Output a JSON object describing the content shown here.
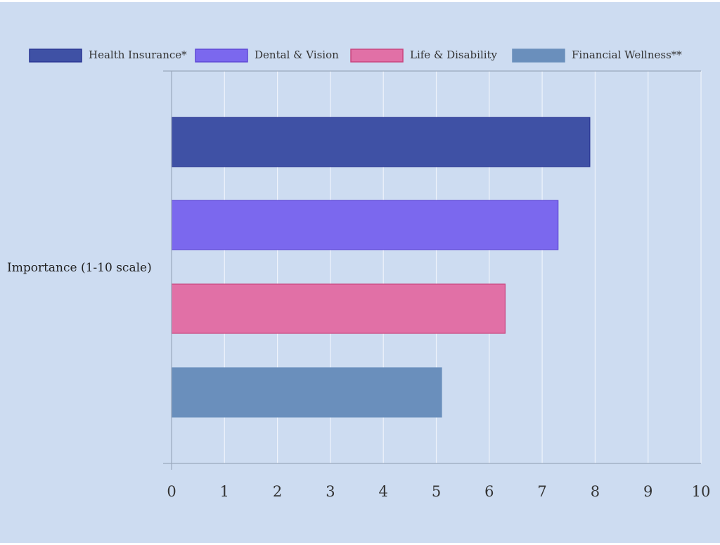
{
  "chart_data": {
    "type": "bar",
    "orientation": "horizontal",
    "ylabel": "Importance (1-10 scale)",
    "xlim": [
      0,
      10
    ],
    "x_ticks": [
      "0",
      "1",
      "2",
      "3",
      "4",
      "5",
      "6",
      "7",
      "8",
      "9",
      "10"
    ],
    "grid": true,
    "legend_position": "top",
    "series": [
      {
        "name": "Health Insurance*",
        "value": 7.9,
        "fill": "#3f51a5",
        "stroke": "#283593"
      },
      {
        "name": "Dental & Vision",
        "value": 7.3,
        "fill": "#7b68ee",
        "stroke": "#5e48d6"
      },
      {
        "name": "Life & Disability",
        "value": 6.3,
        "fill": "#e170a6",
        "stroke": "#c9457f"
      },
      {
        "name": "Financial Wellness**",
        "value": 5.1,
        "fill": "#6a8fbc",
        "stroke": "#6a8fbc"
      }
    ]
  }
}
